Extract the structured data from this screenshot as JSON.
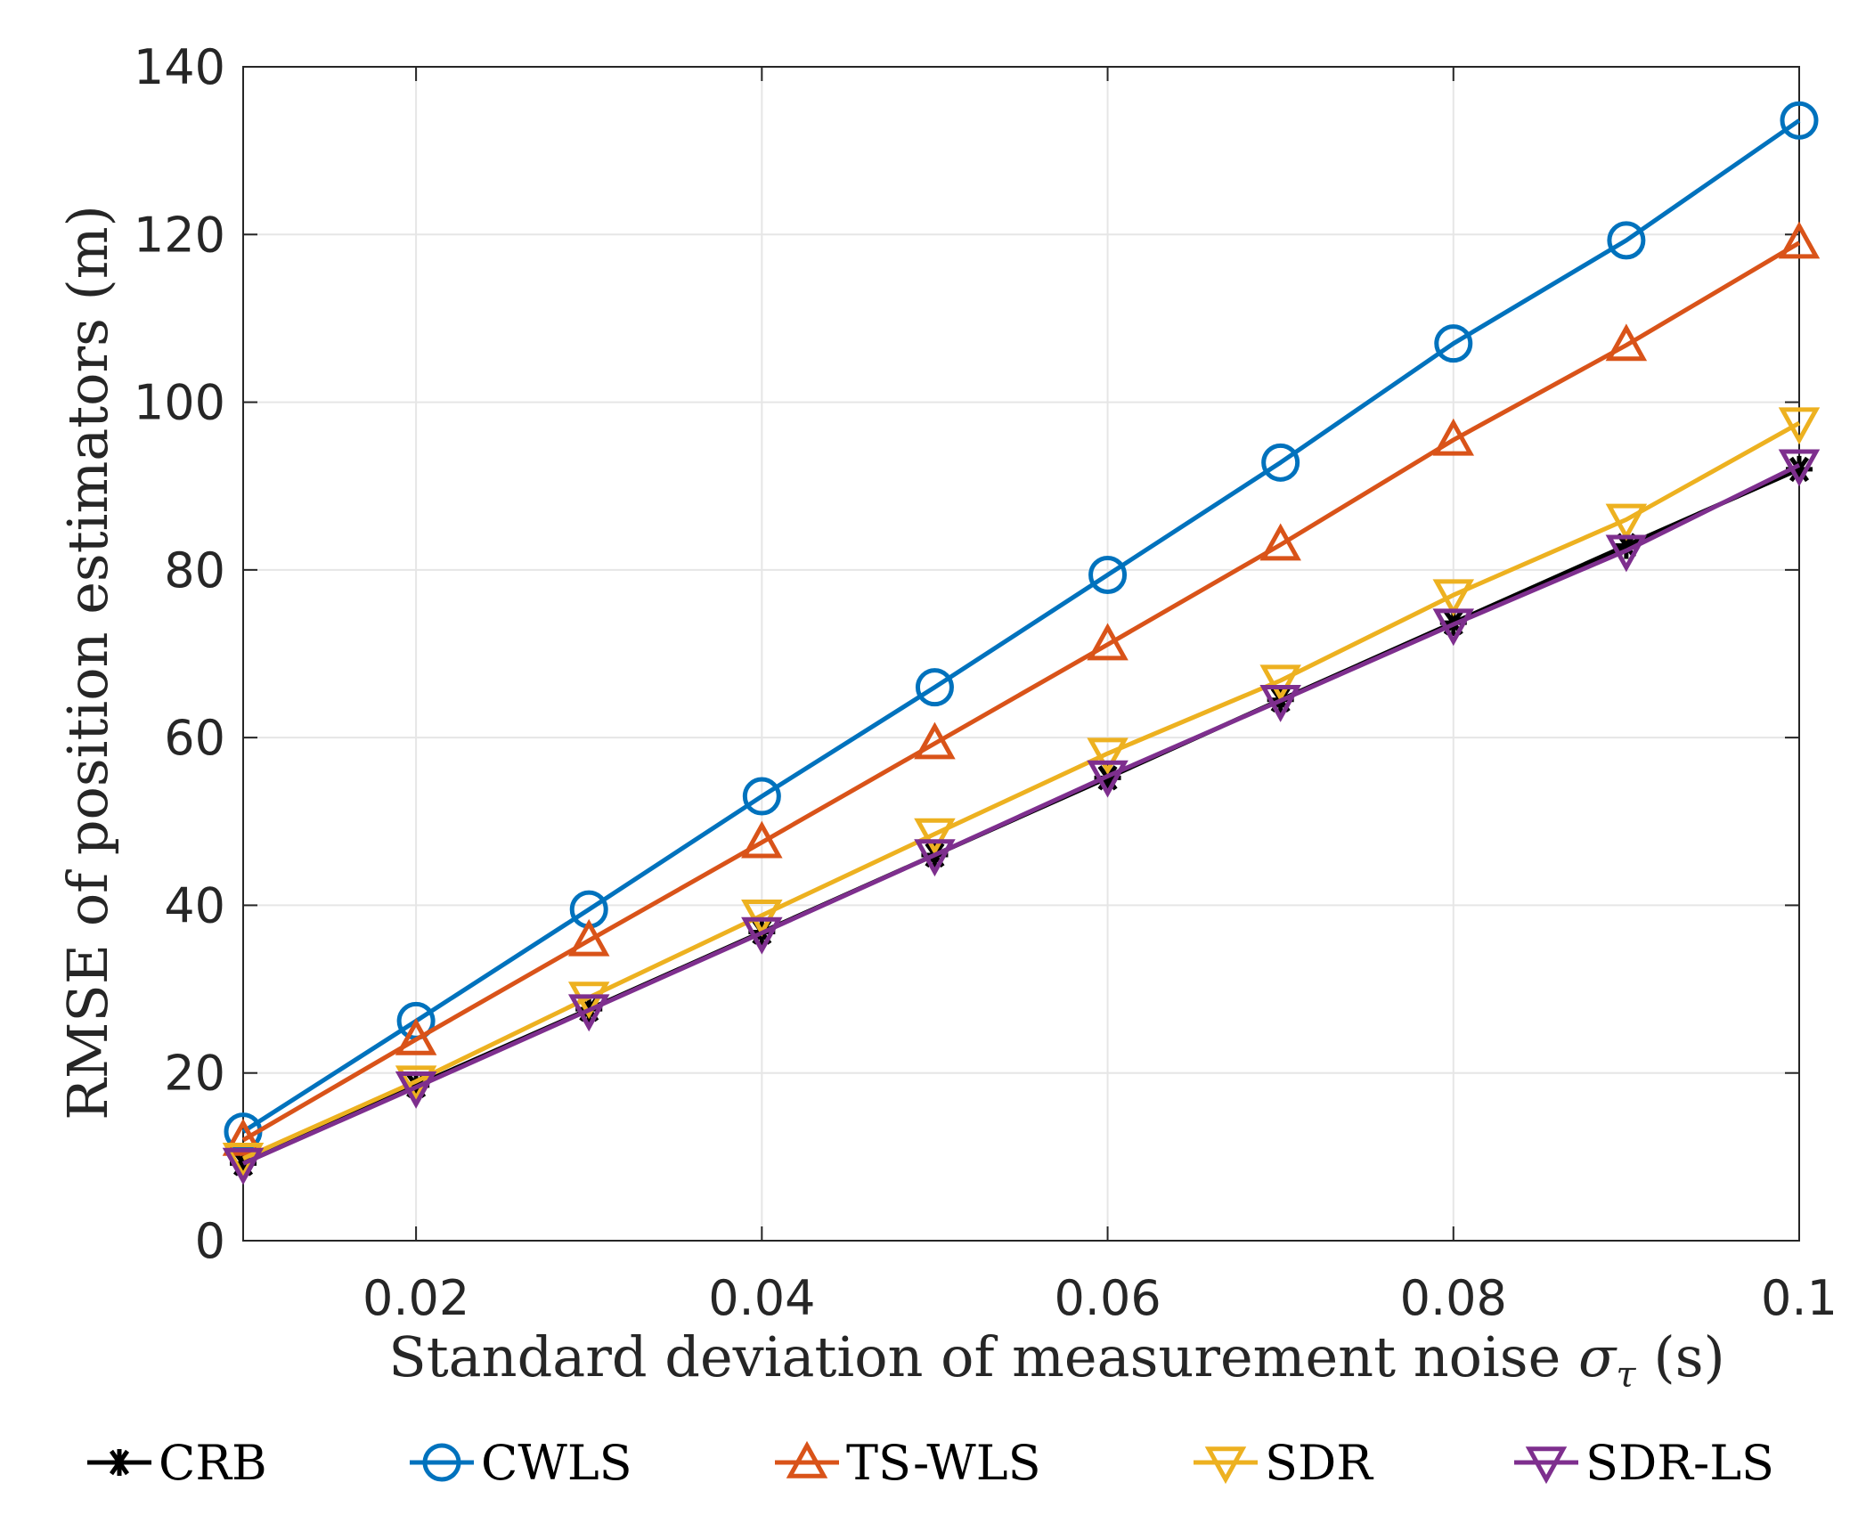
{
  "chart_data": {
    "type": "line",
    "title": "",
    "xlabel": "Standard deviation of measurement noise",
    "xlabel_symbol": "σ",
    "xlabel_subscript": "τ",
    "xlabel_unit": "(s)",
    "ylabel": "RMSE of position estimators (m)",
    "x": [
      0.01,
      0.02,
      0.03,
      0.04,
      0.05,
      0.06,
      0.07,
      0.08,
      0.09,
      0.1
    ],
    "xlim": [
      0.01,
      0.1
    ],
    "ylim": [
      0,
      140
    ],
    "xticks": [
      0.02,
      0.04,
      0.06,
      0.08,
      0.1
    ],
    "xtick_labels": [
      "0.02",
      "0.04",
      "0.06",
      "0.08",
      "0.1"
    ],
    "yticks": [
      0,
      20,
      40,
      60,
      80,
      100,
      120,
      140
    ],
    "ytick_labels": [
      "0",
      "20",
      "40",
      "60",
      "80",
      "100",
      "120",
      "140"
    ],
    "grid": true,
    "legend_position": "bottom, horizontal",
    "series": [
      {
        "name": "CRB",
        "color": "#000000",
        "marker": "asterisk",
        "values": [
          9.2,
          18.5,
          27.6,
          36.8,
          46.0,
          55.2,
          64.5,
          73.7,
          82.9,
          92.0
        ]
      },
      {
        "name": "CWLS",
        "color": "#0072BD",
        "marker": "circle",
        "values": [
          13.0,
          26.2,
          39.5,
          53.0,
          66.0,
          79.4,
          92.8,
          107.0,
          119.3,
          133.6
        ]
      },
      {
        "name": "TS-WLS",
        "color": "#D95319",
        "marker": "triangle-up",
        "values": [
          12.0,
          24.0,
          35.8,
          47.5,
          59.3,
          71.1,
          83.0,
          95.5,
          106.8,
          119.0
        ]
      },
      {
        "name": "SDR",
        "color": "#EDB120",
        "marker": "triangle-down",
        "values": [
          9.8,
          19.0,
          29.0,
          38.8,
          48.5,
          58.1,
          66.8,
          77.0,
          86.0,
          97.5
        ]
      },
      {
        "name": "SDR-LS",
        "color": "#7E2F8E",
        "marker": "triangle-down",
        "values": [
          9.2,
          18.3,
          27.5,
          36.7,
          46.0,
          55.4,
          64.4,
          73.5,
          82.3,
          92.5
        ]
      }
    ]
  }
}
